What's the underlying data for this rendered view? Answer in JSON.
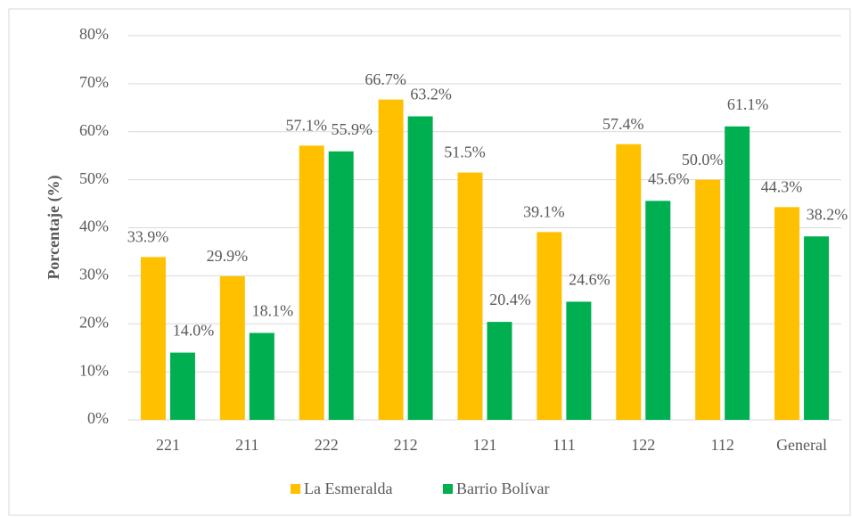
{
  "chart_data": {
    "type": "bar",
    "y_axis_label": "Porcentaje (%)",
    "categories": [
      "221",
      "211",
      "222",
      "212",
      "121",
      "111",
      "122",
      "112",
      "General"
    ],
    "series": [
      {
        "name": "La Esmeralda",
        "color": "#ffc000",
        "values": [
          33.9,
          29.9,
          57.1,
          66.7,
          51.5,
          39.1,
          57.4,
          50.0,
          44.3
        ],
        "value_labels": [
          "33.9%",
          "29.9%",
          "57.1%",
          "66.7%",
          "51.5%",
          "39.1%",
          "57.4%",
          "50.0%",
          "44.3%"
        ]
      },
      {
        "name": "Barrio Bolívar",
        "color": "#00b050",
        "values": [
          14.0,
          18.1,
          55.9,
          63.2,
          20.4,
          24.6,
          45.6,
          61.1,
          38.2
        ],
        "value_labels": [
          "14.0%",
          "18.1%",
          "55.9%",
          "63.2%",
          "20.4%",
          "24.6%",
          "45.6%",
          "61.1%",
          "38.2%"
        ]
      }
    ],
    "ylim": [
      0,
      80
    ],
    "yticks": [
      {
        "value": 0,
        "label": "0%"
      },
      {
        "value": 10,
        "label": "10%"
      },
      {
        "value": 20,
        "label": "20%"
      },
      {
        "value": 30,
        "label": "30%"
      },
      {
        "value": 40,
        "label": "40%"
      },
      {
        "value": 50,
        "label": "50%"
      },
      {
        "value": 60,
        "label": "60%"
      },
      {
        "value": 70,
        "label": "70%"
      },
      {
        "value": 80,
        "label": "80%"
      }
    ],
    "grid": true,
    "legend": "bottom"
  }
}
